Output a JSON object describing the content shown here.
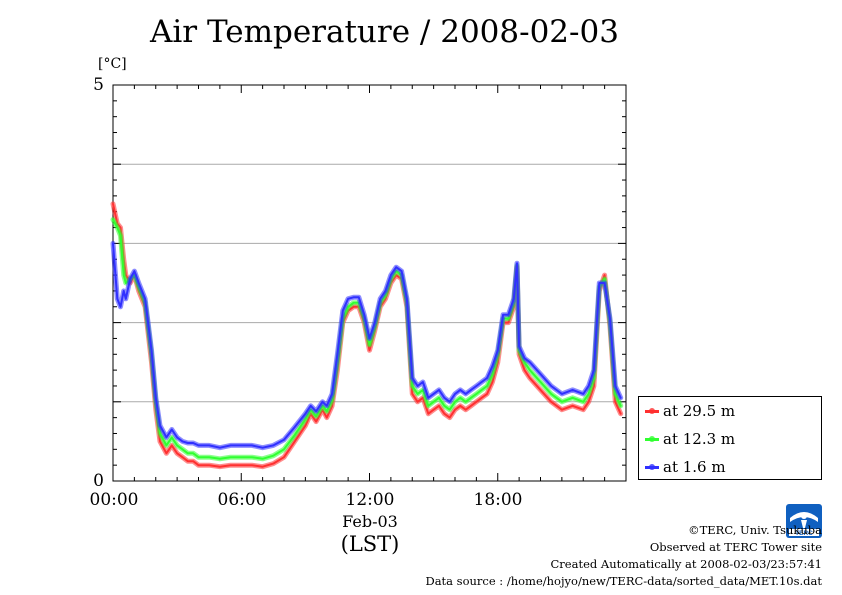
{
  "chart_data": {
    "type": "line",
    "title": "Air Temperature / 2008-02-03",
    "ylabel": "[°C]",
    "xlabel": "(LST)",
    "date_label": "Feb-03",
    "ylim": [
      0,
      5
    ],
    "xlim_hours": [
      0,
      24
    ],
    "y_ticks": [
      "0",
      "5"
    ],
    "x_ticks": [
      {
        "label": "00:00",
        "hour": 0
      },
      {
        "label": "06:00",
        "hour": 6
      },
      {
        "label": "12:00",
        "hour": 12
      },
      {
        "label": "18:00",
        "hour": 18
      }
    ],
    "grid": "horizontal",
    "legend_position": "right-bottom",
    "series": [
      {
        "name": "at 29.5 m",
        "color": "#ff3030",
        "x": [
          0,
          0.2,
          0.35,
          0.5,
          0.6,
          0.8,
          1.0,
          1.2,
          1.5,
          1.8,
          2.0,
          2.2,
          2.5,
          2.75,
          3.0,
          3.25,
          3.5,
          3.75,
          4.0,
          4.5,
          5.0,
          5.5,
          6.0,
          6.5,
          7.0,
          7.5,
          8.0,
          8.5,
          9.0,
          9.25,
          9.5,
          9.8,
          10.0,
          10.25,
          10.5,
          10.75,
          11.0,
          11.25,
          11.5,
          11.75,
          12.0,
          12.25,
          12.5,
          12.75,
          13.0,
          13.25,
          13.5,
          13.75,
          14.0,
          14.25,
          14.5,
          14.75,
          15.0,
          15.25,
          15.5,
          15.75,
          16.0,
          16.25,
          16.5,
          16.75,
          17.0,
          17.25,
          17.5,
          17.75,
          18.0,
          18.25,
          18.5,
          18.75,
          18.9,
          19.0,
          19.25,
          19.5,
          20.0,
          20.5,
          21.0,
          21.5,
          22.0,
          22.25,
          22.5,
          22.75,
          23.0,
          23.25,
          23.5,
          23.75
        ],
        "values": [
          3.5,
          3.25,
          3.2,
          2.8,
          2.6,
          2.5,
          2.6,
          2.4,
          2.2,
          1.5,
          0.9,
          0.5,
          0.35,
          0.45,
          0.35,
          0.3,
          0.25,
          0.25,
          0.2,
          0.2,
          0.18,
          0.2,
          0.2,
          0.2,
          0.18,
          0.22,
          0.3,
          0.5,
          0.7,
          0.85,
          0.75,
          0.9,
          0.8,
          0.95,
          1.4,
          2.0,
          2.15,
          2.2,
          2.2,
          2.0,
          1.65,
          1.9,
          2.2,
          2.3,
          2.5,
          2.6,
          2.55,
          2.2,
          1.1,
          1.0,
          1.05,
          0.85,
          0.9,
          0.95,
          0.85,
          0.8,
          0.9,
          0.95,
          0.9,
          0.95,
          1.0,
          1.05,
          1.1,
          1.25,
          1.5,
          2.0,
          2.0,
          2.2,
          2.7,
          1.6,
          1.4,
          1.3,
          1.15,
          1.0,
          0.9,
          0.95,
          0.9,
          1.0,
          1.2,
          2.4,
          2.6,
          1.95,
          1.0,
          0.85
        ]
      },
      {
        "name": "at 12.3 m",
        "color": "#30ff30",
        "x": [
          0,
          0.2,
          0.35,
          0.5,
          0.6,
          0.8,
          1.0,
          1.2,
          1.5,
          1.8,
          2.0,
          2.2,
          2.5,
          2.75,
          3.0,
          3.25,
          3.5,
          3.75,
          4.0,
          4.5,
          5.0,
          5.5,
          6.0,
          6.5,
          7.0,
          7.5,
          8.0,
          8.5,
          9.0,
          9.25,
          9.5,
          9.8,
          10.0,
          10.25,
          10.5,
          10.75,
          11.0,
          11.25,
          11.5,
          11.75,
          12.0,
          12.25,
          12.5,
          12.75,
          13.0,
          13.25,
          13.5,
          13.75,
          14.0,
          14.25,
          14.5,
          14.75,
          15.0,
          15.25,
          15.5,
          15.75,
          16.0,
          16.25,
          16.5,
          16.75,
          17.0,
          17.25,
          17.5,
          17.75,
          18.0,
          18.25,
          18.5,
          18.75,
          18.9,
          19.0,
          19.25,
          19.5,
          20.0,
          20.5,
          21.0,
          21.5,
          22.0,
          22.25,
          22.5,
          22.75,
          23.0,
          23.25,
          23.5,
          23.75
        ],
        "values": [
          3.3,
          3.2,
          3.1,
          2.6,
          2.5,
          2.55,
          2.6,
          2.45,
          2.25,
          1.6,
          1.0,
          0.6,
          0.45,
          0.55,
          0.45,
          0.4,
          0.35,
          0.35,
          0.3,
          0.3,
          0.28,
          0.3,
          0.3,
          0.3,
          0.28,
          0.32,
          0.4,
          0.58,
          0.78,
          0.9,
          0.82,
          0.95,
          0.88,
          1.02,
          1.5,
          2.05,
          2.2,
          2.25,
          2.25,
          2.05,
          1.72,
          1.95,
          2.25,
          2.35,
          2.55,
          2.65,
          2.6,
          2.25,
          1.2,
          1.1,
          1.15,
          0.95,
          1.0,
          1.05,
          0.95,
          0.9,
          1.0,
          1.05,
          1.0,
          1.05,
          1.1,
          1.15,
          1.2,
          1.35,
          1.6,
          2.05,
          2.05,
          2.25,
          2.72,
          1.65,
          1.5,
          1.4,
          1.25,
          1.1,
          1.0,
          1.05,
          1.0,
          1.1,
          1.3,
          2.45,
          2.55,
          2.0,
          1.1,
          0.95
        ]
      },
      {
        "name": "at 1.6 m",
        "color": "#3030ff",
        "x": [
          0,
          0.2,
          0.35,
          0.5,
          0.6,
          0.8,
          1.0,
          1.2,
          1.5,
          1.8,
          2.0,
          2.2,
          2.5,
          2.75,
          3.0,
          3.25,
          3.5,
          3.75,
          4.0,
          4.5,
          5.0,
          5.5,
          6.0,
          6.5,
          7.0,
          7.5,
          8.0,
          8.5,
          9.0,
          9.25,
          9.5,
          9.8,
          10.0,
          10.25,
          10.5,
          10.75,
          11.0,
          11.25,
          11.5,
          11.75,
          12.0,
          12.25,
          12.5,
          12.75,
          13.0,
          13.25,
          13.5,
          13.75,
          14.0,
          14.25,
          14.5,
          14.75,
          15.0,
          15.25,
          15.5,
          15.75,
          16.0,
          16.25,
          16.5,
          16.75,
          17.0,
          17.25,
          17.5,
          17.75,
          18.0,
          18.25,
          18.5,
          18.75,
          18.9,
          19.0,
          19.25,
          19.5,
          20.0,
          20.5,
          21.0,
          21.5,
          22.0,
          22.25,
          22.5,
          22.75,
          23.0,
          23.25,
          23.5,
          23.75
        ],
        "values": [
          3.0,
          2.3,
          2.2,
          2.4,
          2.3,
          2.55,
          2.65,
          2.5,
          2.3,
          1.65,
          1.05,
          0.7,
          0.55,
          0.65,
          0.55,
          0.5,
          0.48,
          0.48,
          0.45,
          0.45,
          0.42,
          0.45,
          0.45,
          0.45,
          0.42,
          0.45,
          0.52,
          0.68,
          0.85,
          0.95,
          0.88,
          1.0,
          0.95,
          1.1,
          1.6,
          2.15,
          2.3,
          2.32,
          2.32,
          2.1,
          1.8,
          2.0,
          2.3,
          2.4,
          2.6,
          2.7,
          2.65,
          2.3,
          1.3,
          1.2,
          1.25,
          1.05,
          1.1,
          1.15,
          1.05,
          1.0,
          1.1,
          1.15,
          1.1,
          1.15,
          1.2,
          1.25,
          1.3,
          1.45,
          1.65,
          2.1,
          2.1,
          2.3,
          2.75,
          1.7,
          1.55,
          1.5,
          1.35,
          1.2,
          1.1,
          1.15,
          1.1,
          1.2,
          1.4,
          2.5,
          2.5,
          2.05,
          1.2,
          1.05
        ]
      }
    ]
  },
  "credits": {
    "copyright": "©TERC, Univ. Tsukuba",
    "observed": "Observed at TERC Tower site",
    "created": "Created Automatically at 2008-02-03/23:57:41",
    "source": "Data source : /home/hojyo/new/TERC-data/sorted_data/MET.10s.dat"
  },
  "logo": {
    "text": "TERC",
    "color": "#1060c0"
  }
}
